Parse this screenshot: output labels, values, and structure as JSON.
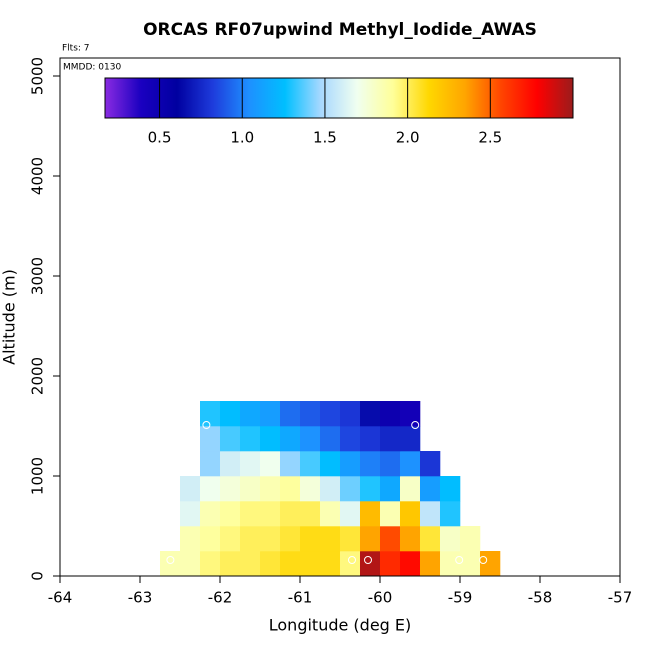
{
  "chart_data": {
    "type": "heatmap",
    "title": "ORCAS RF07upwind Methyl_Iodide_AWAS",
    "subtitle": "Flts: 7",
    "annotation": "MMDD: 0130",
    "x_label": "Longitude (deg E)",
    "y_label": "Altitude (m)",
    "xlim": [
      -64,
      -57
    ],
    "ylim": [
      0,
      5180
    ],
    "xticks": [
      -64,
      -63,
      -62,
      -61,
      -60,
      -59,
      -58,
      -57
    ],
    "yticks": [
      0,
      1000,
      2000,
      3000,
      4000,
      5000
    ],
    "xbins": [
      -62.75,
      -62.5,
      -62.25,
      -62,
      -61.75,
      -61.5,
      -61.25,
      -61,
      -60.75,
      -60.5,
      -60.25,
      -60,
      -59.75,
      -59.5,
      -59.25,
      -59,
      -58.75,
      -58.5
    ],
    "ybins": [
      0,
      250,
      500,
      750,
      1000,
      1250,
      1500,
      1750
    ],
    "values": [
      [
        1.85,
        1.85,
        1.95,
        2.0,
        2.0,
        2.05,
        2.1,
        2.1,
        2.1,
        1.95,
        2.95,
        2.65,
        2.75,
        2.35,
        1.85,
        1.85,
        2.35
      ],
      [
        null,
        1.85,
        1.9,
        1.95,
        2.0,
        2.0,
        2.05,
        2.1,
        2.1,
        2.05,
        2.35,
        2.55,
        2.35,
        2.05,
        1.8,
        1.85,
        null
      ],
      [
        null,
        1.65,
        1.85,
        1.9,
        1.95,
        1.95,
        2.0,
        2.0,
        1.85,
        1.65,
        2.25,
        1.85,
        2.2,
        1.55,
        1.3,
        null,
        null
      ],
      [
        null,
        1.6,
        1.7,
        1.75,
        1.8,
        1.85,
        1.9,
        1.75,
        1.6,
        1.4,
        1.3,
        1.15,
        1.8,
        1.1,
        1.25,
        null,
        null
      ],
      [
        null,
        null,
        1.45,
        1.6,
        1.65,
        1.7,
        1.45,
        1.35,
        1.25,
        1.1,
        1.0,
        0.95,
        1.05,
        0.8,
        null,
        null,
        null
      ],
      [
        null,
        null,
        1.45,
        1.35,
        1.3,
        1.25,
        1.15,
        1.05,
        0.95,
        0.85,
        0.8,
        0.75,
        0.75,
        null,
        null,
        null,
        null
      ],
      [
        null,
        null,
        1.3,
        1.25,
        1.15,
        1.1,
        0.95,
        0.9,
        0.85,
        0.8,
        0.65,
        0.5,
        0.45,
        null,
        null,
        null,
        null
      ]
    ],
    "points": {
      "x": [
        -62.17,
        -59.56,
        -62.62,
        -60.35,
        -60.15,
        -59.01,
        -58.71
      ],
      "y": [
        1510,
        1510,
        160,
        160,
        160,
        160,
        160
      ]
    },
    "clim": [
      0.17,
      3.0
    ],
    "cticks": [
      0.5,
      {
        "value": 1,
        "label": "1.0"
      },
      1.5,
      {
        "value": 2,
        "label": "2.0"
      },
      2.5
    ],
    "colors": [
      "#8a2be2",
      "#1a00c0",
      "#0000a0",
      "#1e3cdc",
      "#1e90ff",
      "#00bfff",
      "#a8d8ff",
      "#f0fff0",
      "#ffff99",
      "#ffd700",
      "#ffa500",
      "#ff4500",
      "#ff0000",
      "#9b1c1c"
    ]
  }
}
